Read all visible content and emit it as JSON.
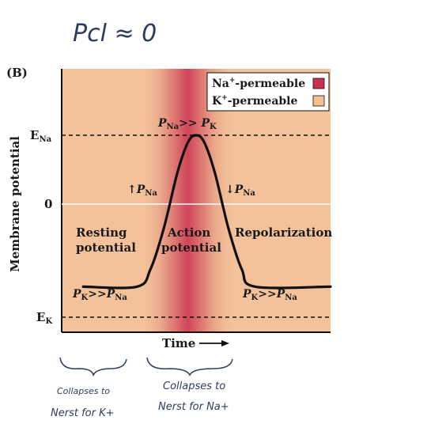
{
  "annotation_top": "Pcl ≈ 0",
  "panel_label": "(B)",
  "legend": [
    {
      "label": "Na+-permeable",
      "swatch_color": "#c8324f"
    },
    {
      "label": "K+-permeable",
      "swatch_color": "#f4c18f"
    }
  ],
  "colors": {
    "background_k": "#f3c29a",
    "band_center": "#d0495a",
    "band_mid": "#e48a7c",
    "curve": "#111111"
  },
  "chart_data": {
    "type": "line",
    "title": "",
    "xlabel": "Time",
    "ylabel": "Membrane potential",
    "y_ticks": [
      "E_Na",
      "0",
      "E_K"
    ],
    "y_tick_values": [
      1,
      0,
      -1.2
    ],
    "ylim": [
      -1.2,
      1
    ],
    "xlim": [
      0,
      10
    ],
    "reference_lines": [
      {
        "label": "E_Na",
        "value": 1,
        "style": "dashed"
      },
      {
        "label": "0",
        "value": 0,
        "style": "solid-white"
      },
      {
        "label": "E_K",
        "value": -1.2,
        "style": "dashed"
      }
    ],
    "series": [
      {
        "x": [
          0.8,
          2.8,
          3.3,
          3.8,
          4.3,
          4.7,
          5.0,
          5.3,
          5.7,
          6.2,
          6.7,
          7.2,
          10.0
        ],
        "y": [
          -1.2,
          -1.2,
          -0.95,
          -0.35,
          0.45,
          0.9,
          1.0,
          0.9,
          0.45,
          -0.35,
          -0.95,
          -1.2,
          -1.2
        ]
      }
    ],
    "annotations": {
      "peak": "PNa>> PK",
      "rise": "PNa",
      "fall": "PNa",
      "resting_1": "Resting",
      "resting_2": "potential",
      "action_1": "Action",
      "action_2": "potential",
      "repol": "Repolarization",
      "left_low": "PK>>PNa",
      "right_low": "PK>>PNa"
    }
  },
  "handwriting": {
    "left_line1": "Collapses to",
    "left_line2": "Nerst for K+",
    "right_line1": "Collapses to",
    "right_line2": "Nerst for Na+"
  }
}
